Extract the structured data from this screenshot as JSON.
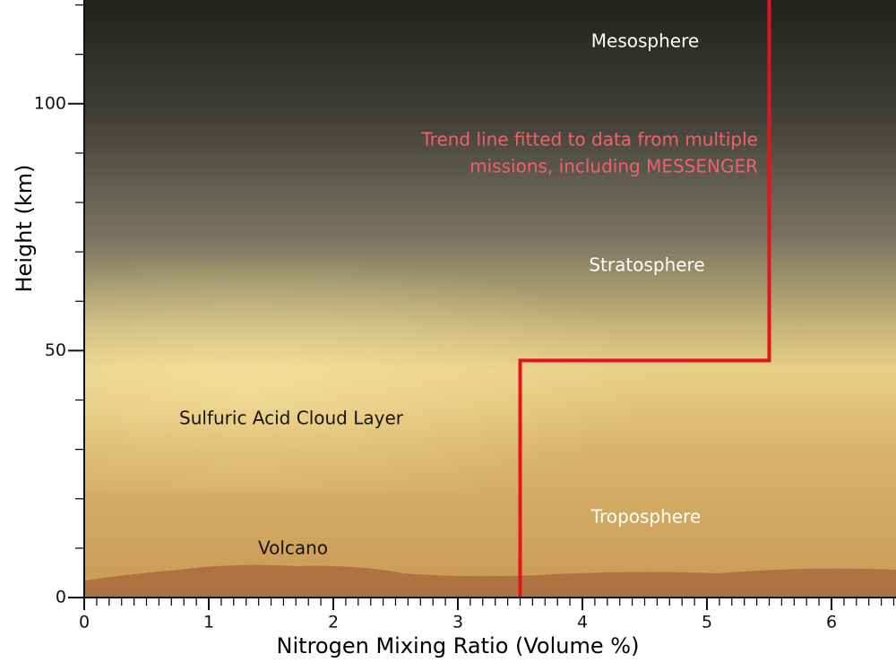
{
  "chart_data": {
    "type": "line",
    "x_label": "Nitrogen Mixing Ratio (Volume %)",
    "y_label": "Height (km)",
    "xlim": [
      0,
      6.5
    ],
    "ylim": [
      0,
      121
    ],
    "xticks": [
      0,
      1,
      2,
      3,
      4,
      5,
      6
    ],
    "yticks": [
      0,
      50,
      100
    ],
    "x_minor_ticks": [
      0.1,
      0.2,
      0.3,
      0.4,
      0.5,
      0.6,
      0.7,
      0.8,
      0.9,
      1.1,
      1.2,
      1.3,
      1.4,
      1.5,
      1.6,
      1.7,
      1.8,
      1.9,
      2.1,
      2.2,
      2.3,
      2.4,
      2.5,
      2.6,
      2.7,
      2.8,
      2.9,
      3.1,
      3.2,
      3.3,
      3.4,
      3.5,
      3.6,
      3.7,
      3.8,
      3.9,
      4.1,
      4.2,
      4.3,
      4.4,
      4.5,
      4.6,
      4.7,
      4.8,
      4.9,
      5.1,
      5.2,
      5.3,
      5.4,
      5.5,
      5.6,
      5.7,
      5.8,
      5.9,
      6.1,
      6.2,
      6.3,
      6.4,
      6.5
    ],
    "y_minor_ticks": [
      10,
      20,
      30,
      40,
      60,
      70,
      80,
      90,
      110,
      120
    ],
    "series": [
      {
        "color": "#e3141b",
        "x": [
          3.5,
          3.5,
          5.5,
          5.5
        ],
        "values": [
          0,
          48,
          48,
          121
        ]
      }
    ],
    "annotations": [
      {
        "text": "Mesosphere"
      },
      {
        "lines": [
          "Trend line fitted to data from multiple",
          "missions, including MESSENGER"
        ]
      },
      {
        "text": "Stratosphere"
      },
      {
        "text": "Sulfuric Acid Cloud Layer"
      },
      {
        "text": "Troposphere"
      },
      {
        "text": "Volcano"
      }
    ]
  }
}
